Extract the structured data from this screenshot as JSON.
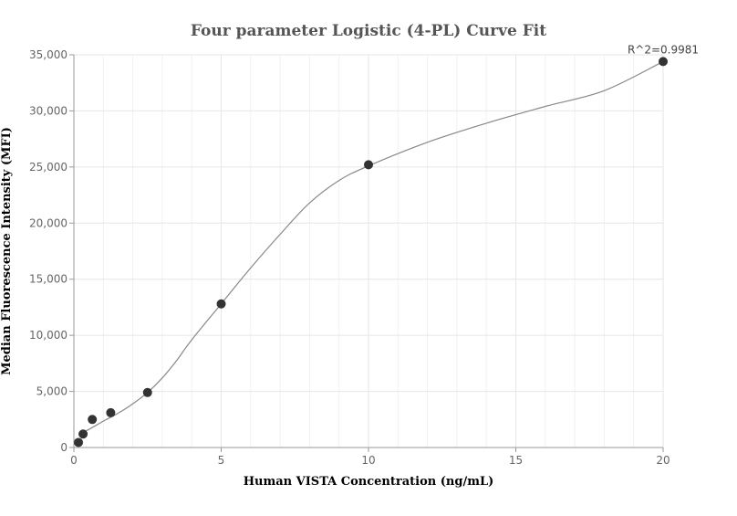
{
  "chart_data": {
    "type": "scatter",
    "title": "Four parameter Logistic (4-PL) Curve Fit",
    "xlabel": "Human VISTA Concentration (ng/mL)",
    "ylabel": "Median Fluorescence Intensity (MFI)",
    "xlim": [
      0,
      20
    ],
    "ylim": [
      0,
      35000
    ],
    "x_ticks": [
      0,
      5,
      10,
      15,
      20
    ],
    "x_tick_labels": [
      "0",
      "5",
      "10",
      "15",
      "20"
    ],
    "y_ticks": [
      0,
      5000,
      10000,
      15000,
      20000,
      25000,
      30000,
      35000
    ],
    "y_tick_labels": [
      "0",
      "5,000",
      "10,000",
      "15,000",
      "20,000",
      "25,000",
      "30,000",
      "35,000"
    ],
    "grid": true,
    "series": [
      {
        "points": [
          {
            "x": 0.156,
            "y": 450
          },
          {
            "x": 0.3125,
            "y": 1200
          },
          {
            "x": 0.625,
            "y": 2500
          },
          {
            "x": 1.25,
            "y": 3100
          },
          {
            "x": 2.5,
            "y": 4900
          },
          {
            "x": 5,
            "y": 12800
          },
          {
            "x": 10,
            "y": 25200
          },
          {
            "x": 20,
            "y": 34400
          }
        ]
      }
    ],
    "fit_curve": {
      "x": [
        0.156,
        0.5,
        1,
        1.5,
        2,
        2.5,
        3,
        3.5,
        4,
        5,
        6,
        7,
        8,
        9,
        10,
        12,
        14,
        16,
        18,
        20
      ],
      "y": [
        1150,
        1600,
        2350,
        3050,
        3900,
        4900,
        6200,
        7800,
        9600,
        12800,
        16000,
        19000,
        21800,
        23800,
        25100,
        27200,
        28900,
        30400,
        31800,
        34400
      ]
    },
    "annotations": [
      {
        "text": "R^2=0.9981",
        "x": 20,
        "y": 34400
      }
    ]
  },
  "colors": {
    "point": "#333333",
    "curve": "#888888",
    "grid": "#e6e6e6",
    "axis": "#999999"
  }
}
